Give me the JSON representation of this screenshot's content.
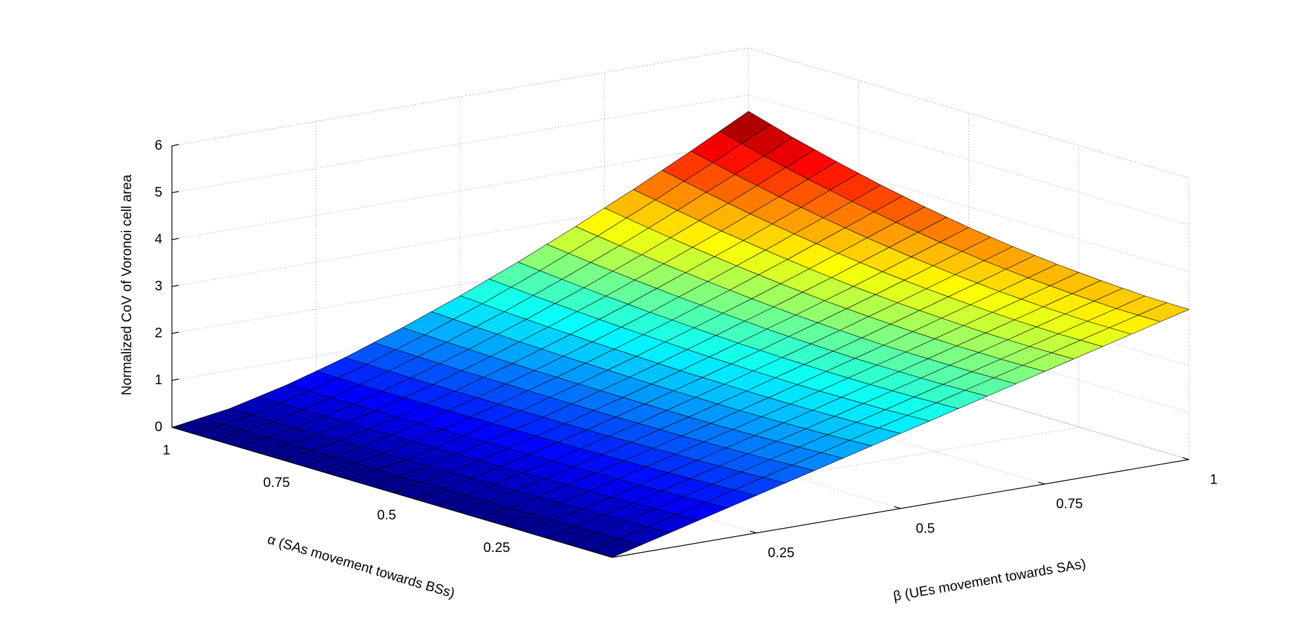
{
  "chart_data": {
    "type": "surface",
    "xlabel": "α (SAs movement towards BSs)",
    "ylabel": "β (UEs movement towards SAs)",
    "zlabel": "Normalized CoV of Voronoi cell area",
    "x": [
      0,
      0.1,
      0.2,
      0.3,
      0.4,
      0.5,
      0.6,
      0.7,
      0.8,
      0.9,
      1
    ],
    "y": [
      0,
      0.1,
      0.2,
      0.3,
      0.4,
      0.5,
      0.6,
      0.7,
      0.8,
      0.9,
      1
    ],
    "z": [
      [
        0,
        0.32,
        0.64,
        0.96,
        1.28,
        1.6,
        1.92,
        2.24,
        2.56,
        2.88,
        3.2
      ],
      [
        0,
        0.29,
        0.6,
        0.92,
        1.24,
        1.56,
        1.89,
        2.22,
        2.55,
        2.88,
        3.21
      ],
      [
        0,
        0.27,
        0.57,
        0.89,
        1.21,
        1.54,
        1.88,
        2.22,
        2.56,
        2.91,
        3.26
      ],
      [
        0,
        0.25,
        0.55,
        0.87,
        1.19,
        1.53,
        1.88,
        2.23,
        2.6,
        2.96,
        3.33
      ],
      [
        0,
        0.24,
        0.53,
        0.85,
        1.19,
        1.54,
        1.9,
        2.27,
        2.65,
        3.04,
        3.43
      ],
      [
        0,
        0.22,
        0.52,
        0.84,
        1.19,
        1.55,
        1.93,
        2.32,
        2.72,
        3.14,
        3.56
      ],
      [
        0,
        0.21,
        0.51,
        0.84,
        1.2,
        1.58,
        1.98,
        2.39,
        2.82,
        3.27,
        3.72
      ],
      [
        0,
        0.21,
        0.5,
        0.84,
        1.21,
        1.61,
        2.03,
        2.48,
        2.94,
        3.42,
        3.91
      ],
      [
        0,
        0.2,
        0.49,
        0.84,
        1.23,
        1.65,
        2.1,
        2.58,
        3.07,
        3.59,
        4.13
      ],
      [
        0,
        0.19,
        0.49,
        0.85,
        1.26,
        1.7,
        2.18,
        2.69,
        3.23,
        3.79,
        4.37
      ],
      [
        0,
        0.19,
        0.49,
        0.86,
        1.29,
        1.76,
        2.27,
        2.82,
        3.4,
        4.01,
        4.65
      ]
    ],
    "xlim": [
      0,
      1
    ],
    "xticks": [
      0.25,
      0.5,
      0.75,
      1
    ],
    "ylim": [
      0,
      1
    ],
    "yticks": [
      0.25,
      0.5,
      0.75,
      1
    ],
    "zlim": [
      0,
      6
    ],
    "zticks": [
      0,
      1,
      2,
      3,
      4,
      5,
      6
    ],
    "colormap": "jet",
    "grid": true,
    "edgecolor": "#000000"
  }
}
